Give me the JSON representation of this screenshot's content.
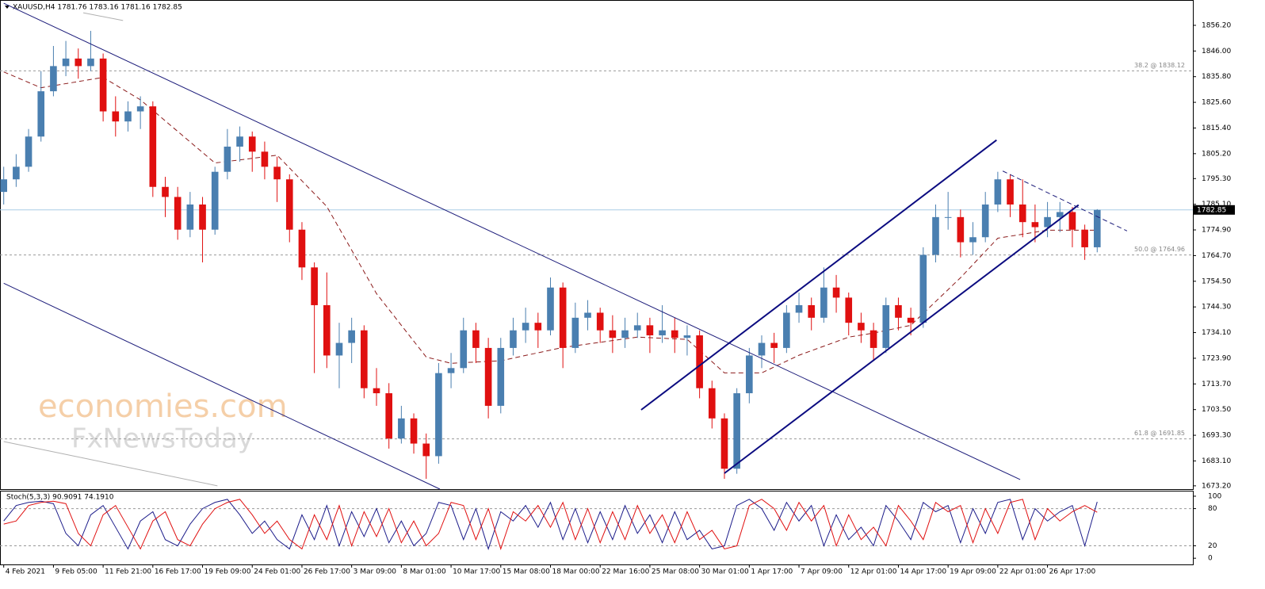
{
  "chart_data": [
    {
      "type": "candlestick",
      "title": "XAUUSD,H4  1781.76 1783.16 1781.16 1782.85",
      "up_color": "#4a7fb0",
      "down_color": "#e01010",
      "xlim": [
        -0.3,
        95.7
      ],
      "xticks": [
        {
          "value": 0,
          "label": "4 Feb 2021"
        },
        {
          "value": 4,
          "label": "9 Feb 05:00"
        },
        {
          "value": 8,
          "label": "11 Feb 21:00"
        },
        {
          "value": 12,
          "label": "16 Feb 17:00"
        },
        {
          "value": 16,
          "label": "19 Feb 09:00"
        },
        {
          "value": 20,
          "label": "24 Feb 01:00"
        },
        {
          "value": 24,
          "label": "26 Feb 17:00"
        },
        {
          "value": 28,
          "label": "3 Mar 09:00"
        },
        {
          "value": 32,
          "label": "8 Mar 01:00"
        },
        {
          "value": 36,
          "label": "10 Mar 17:00"
        },
        {
          "value": 40,
          "label": "15 Mar 08:00"
        },
        {
          "value": 44,
          "label": "18 Mar 00:00"
        },
        {
          "value": 48,
          "label": "22 Mar 16:00"
        },
        {
          "value": 52,
          "label": "25 Mar 08:00"
        },
        {
          "value": 56,
          "label": "30 Mar 01:00"
        },
        {
          "value": 60,
          "label": "1 Apr 17:00"
        },
        {
          "value": 64,
          "label": "7 Apr 09:00"
        },
        {
          "value": 68,
          "label": "12 Apr 01:00"
        },
        {
          "value": 72,
          "label": "14 Apr 17:00"
        },
        {
          "value": 76,
          "label": "19 Apr 09:00"
        },
        {
          "value": 80,
          "label": "22 Apr 01:00"
        },
        {
          "value": 84,
          "label": "26 Apr 17:00"
        }
      ],
      "ylim": [
        1671.9,
        1865.95
      ],
      "yticks": [
        {
          "value": 1856.2,
          "label": "1856.20"
        },
        {
          "value": 1846,
          "label": "1846.00"
        },
        {
          "value": 1835.8,
          "label": "1835.80"
        },
        {
          "value": 1825.6,
          "label": "1825.60"
        },
        {
          "value": 1815.4,
          "label": "1815.40"
        },
        {
          "value": 1805.2,
          "label": "1805.20"
        },
        {
          "value": 1795.3,
          "label": "1795.30"
        },
        {
          "value": 1785.1,
          "label": "1785.10"
        },
        {
          "value": 1774.9,
          "label": "1774.90"
        },
        {
          "value": 1764.7,
          "label": "1764.70"
        },
        {
          "value": 1754.5,
          "label": "1754.50"
        },
        {
          "value": 1744.3,
          "label": "1744.30"
        },
        {
          "value": 1734.1,
          "label": "1734.10"
        },
        {
          "value": 1723.9,
          "label": "1723.90"
        },
        {
          "value": 1713.7,
          "label": "1713.70"
        },
        {
          "value": 1703.5,
          "label": "1703.50"
        },
        {
          "value": 1693.3,
          "label": "1693.30"
        },
        {
          "value": 1683.1,
          "label": "1683.10"
        },
        {
          "value": 1673.2,
          "label": "1673.20"
        }
      ],
      "current_price": 1782.85,
      "candles": [
        [
          1790,
          1800,
          1785,
          1795
        ],
        [
          1795,
          1805,
          1792,
          1800
        ],
        [
          1800,
          1815,
          1798,
          1812
        ],
        [
          1812,
          1838,
          1810,
          1830
        ],
        [
          1830,
          1848,
          1828,
          1840
        ],
        [
          1840,
          1850,
          1836,
          1843
        ],
        [
          1843,
          1847,
          1835,
          1840
        ],
        [
          1840,
          1854,
          1838,
          1843
        ],
        [
          1843,
          1845,
          1818,
          1822
        ],
        [
          1822,
          1828,
          1812,
          1818
        ],
        [
          1818,
          1826,
          1814,
          1822
        ],
        [
          1822,
          1828,
          1815,
          1824
        ],
        [
          1824,
          1826,
          1788,
          1792
        ],
        [
          1792,
          1796,
          1780,
          1788
        ],
        [
          1788,
          1792,
          1771,
          1775
        ],
        [
          1775,
          1790,
          1772,
          1785
        ],
        [
          1785,
          1788,
          1762,
          1775
        ],
        [
          1775,
          1800,
          1773,
          1798
        ],
        [
          1798,
          1815,
          1795,
          1808
        ],
        [
          1808,
          1816,
          1802,
          1812
        ],
        [
          1812,
          1814,
          1798,
          1806
        ],
        [
          1806,
          1810,
          1795,
          1800
        ],
        [
          1800,
          1804,
          1786,
          1795
        ],
        [
          1795,
          1797,
          1770,
          1775
        ],
        [
          1775,
          1778,
          1755,
          1760
        ],
        [
          1760,
          1762,
          1718,
          1745
        ],
        [
          1745,
          1758,
          1720,
          1725
        ],
        [
          1725,
          1738,
          1712,
          1730
        ],
        [
          1730,
          1740,
          1722,
          1735
        ],
        [
          1735,
          1737,
          1708,
          1712
        ],
        [
          1712,
          1720,
          1705,
          1710
        ],
        [
          1710,
          1714,
          1688,
          1692
        ],
        [
          1692,
          1705,
          1690,
          1700
        ],
        [
          1700,
          1702,
          1686,
          1690
        ],
        [
          1690,
          1694,
          1676,
          1685
        ],
        [
          1685,
          1722,
          1682,
          1718
        ],
        [
          1718,
          1726,
          1712,
          1720
        ],
        [
          1720,
          1740,
          1718,
          1735
        ],
        [
          1735,
          1738,
          1722,
          1728
        ],
        [
          1728,
          1732,
          1700,
          1705
        ],
        [
          1705,
          1732,
          1702,
          1728
        ],
        [
          1728,
          1740,
          1725,
          1735
        ],
        [
          1735,
          1744,
          1730,
          1738
        ],
        [
          1738,
          1742,
          1728,
          1735
        ],
        [
          1735,
          1756,
          1733,
          1752
        ],
        [
          1752,
          1754,
          1720,
          1728
        ],
        [
          1728,
          1746,
          1726,
          1740
        ],
        [
          1740,
          1747,
          1735,
          1742
        ],
        [
          1742,
          1744,
          1730,
          1735
        ],
        [
          1735,
          1741,
          1726,
          1732
        ],
        [
          1732,
          1740,
          1728,
          1735
        ],
        [
          1735,
          1742,
          1732,
          1737
        ],
        [
          1737,
          1740,
          1726,
          1733
        ],
        [
          1733,
          1745,
          1730,
          1735
        ],
        [
          1735,
          1740,
          1726,
          1732
        ],
        [
          1732,
          1737,
          1725,
          1733
        ],
        [
          1733,
          1735,
          1708,
          1712
        ],
        [
          1712,
          1715,
          1696,
          1700
        ],
        [
          1700,
          1702,
          1676,
          1680
        ],
        [
          1680,
          1712,
          1678,
          1710
        ],
        [
          1710,
          1728,
          1706,
          1725
        ],
        [
          1725,
          1733,
          1720,
          1730
        ],
        [
          1730,
          1734,
          1722,
          1728
        ],
        [
          1728,
          1745,
          1726,
          1742
        ],
        [
          1742,
          1750,
          1738,
          1745
        ],
        [
          1745,
          1748,
          1735,
          1740
        ],
        [
          1740,
          1760,
          1738,
          1752
        ],
        [
          1752,
          1757,
          1742,
          1748
        ],
        [
          1748,
          1750,
          1733,
          1738
        ],
        [
          1738,
          1742,
          1730,
          1735
        ],
        [
          1735,
          1738,
          1723,
          1728
        ],
        [
          1728,
          1748,
          1726,
          1745
        ],
        [
          1745,
          1748,
          1735,
          1740
        ],
        [
          1740,
          1744,
          1733,
          1738
        ],
        [
          1738,
          1768,
          1736,
          1765
        ],
        [
          1765,
          1785,
          1762,
          1780
        ],
        [
          1780,
          1790,
          1775,
          1780
        ],
        [
          1780,
          1783,
          1764,
          1770
        ],
        [
          1770,
          1778,
          1765,
          1772
        ],
        [
          1772,
          1790,
          1770,
          1785
        ],
        [
          1785,
          1798,
          1782,
          1795
        ],
        [
          1795,
          1797,
          1780,
          1785
        ],
        [
          1785,
          1795,
          1772,
          1778
        ],
        [
          1778,
          1785,
          1770,
          1776
        ],
        [
          1776,
          1786,
          1772,
          1780
        ],
        [
          1780,
          1786,
          1774,
          1782
        ],
        [
          1782,
          1784,
          1768,
          1775
        ],
        [
          1775,
          1777,
          1763,
          1768
        ],
        [
          1768,
          1783.16,
          1766,
          1782.85
        ]
      ],
      "ma": {
        "color": "#8b1a1a",
        "x": [
          0,
          3,
          8,
          11,
          17,
          22,
          26,
          30,
          34,
          36,
          40,
          45,
          51,
          55,
          58,
          61,
          64,
          68,
          70,
          73,
          77,
          80,
          84,
          88
        ],
        "values": [
          1837.7,
          1831.4,
          1835.5,
          1826.6,
          1801.5,
          1804.6,
          1784.2,
          1749.6,
          1724.4,
          1721.9,
          1722.9,
          1728.2,
          1732.3,
          1731.4,
          1718.1,
          1718.1,
          1725.1,
          1732.3,
          1733.9,
          1737.0,
          1755.9,
          1771.6,
          1774.8,
          1774.8
        ]
      },
      "levels": [
        {
          "label": "38.2 @ 1838.12",
          "value": 1838.12
        },
        {
          "label": "50.0 @ 1764.96",
          "value": 1764.96
        },
        {
          "label": "61.8 @ 1691.85",
          "value": 1691.85
        }
      ],
      "trendlines": [
        {
          "color": "#1c1c7a",
          "width": 1,
          "x": [
            0,
            81.8
          ],
          "y": [
            1865,
            1675.7
          ]
        },
        {
          "color": "#1c1c7a",
          "width": 1,
          "x": [
            0,
            35.1
          ],
          "y": [
            1753.7,
            1671.9
          ]
        },
        {
          "color": "#b0b0b0",
          "width": 1,
          "x": [
            0,
            17.2
          ],
          "y": [
            1690.8,
            1673.2
          ]
        },
        {
          "color": "#b0b0b0",
          "width": 1,
          "x": [
            6.4,
            9.6
          ],
          "y": [
            1861.2,
            1858.1
          ]
        },
        {
          "color": "#0b0b80",
          "width": 2,
          "x": [
            51.3,
            79.9
          ],
          "y": [
            1703.4,
            1810.6
          ]
        },
        {
          "color": "#0b0b80",
          "width": 2,
          "x": [
            58,
            86.5
          ],
          "y": [
            1678.2,
            1784.8
          ]
        },
        {
          "color": "#1c1c7a",
          "width": 1,
          "dashed": true,
          "x": [
            80.4,
            90.4
          ],
          "y": [
            1798.3,
            1774.5
          ]
        }
      ],
      "watermarks": [
        "economies.com",
        "FxNewsToday"
      ]
    },
    {
      "type": "line",
      "title": "Stoch(5,3,3) 90.9091 74.1910",
      "ylim": [
        -10,
        107.6
      ],
      "yticks": [
        0,
        20,
        80,
        100
      ],
      "levels": [
        20,
        80
      ],
      "series": [
        {
          "color": "#1c1c8a",
          "values": [
            60,
            85,
            90,
            92,
            88,
            40,
            20,
            70,
            85,
            50,
            15,
            60,
            75,
            30,
            20,
            55,
            80,
            90,
            95,
            70,
            40,
            60,
            30,
            15,
            70,
            30,
            85,
            20,
            75,
            35,
            80,
            25,
            60,
            20,
            40,
            90,
            85,
            30,
            80,
            15,
            75,
            60,
            85,
            50,
            90,
            30,
            80,
            25,
            75,
            30,
            85,
            40,
            70,
            25,
            75,
            30,
            45,
            15,
            20,
            85,
            95,
            80,
            45,
            90,
            60,
            85,
            20,
            70,
            30,
            50,
            20,
            85,
            60,
            30,
            90,
            75,
            85,
            25,
            80,
            40,
            90,
            95,
            30,
            80,
            60,
            75,
            85,
            20,
            90.9091
          ]
        },
        {
          "color": "#e01010",
          "values": [
            55,
            60,
            85,
            90,
            92,
            88,
            40,
            20,
            70,
            85,
            50,
            15,
            60,
            75,
            30,
            20,
            55,
            80,
            90,
            95,
            70,
            40,
            60,
            30,
            15,
            70,
            30,
            85,
            20,
            75,
            35,
            80,
            25,
            60,
            20,
            40,
            90,
            85,
            30,
            80,
            15,
            75,
            60,
            85,
            50,
            90,
            30,
            80,
            25,
            75,
            30,
            85,
            40,
            70,
            25,
            75,
            30,
            45,
            15,
            20,
            85,
            95,
            80,
            45,
            90,
            60,
            85,
            20,
            70,
            30,
            50,
            20,
            85,
            60,
            30,
            90,
            75,
            85,
            25,
            80,
            40,
            90,
            95,
            30,
            80,
            60,
            75,
            85,
            74.191
          ]
        }
      ]
    }
  ]
}
